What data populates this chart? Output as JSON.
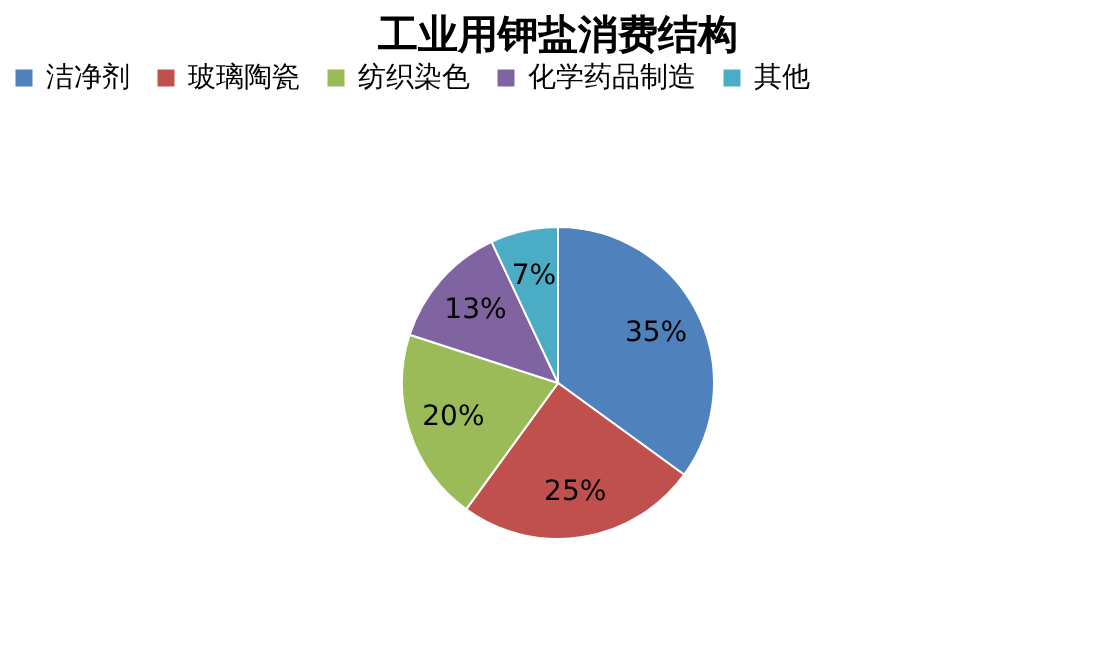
{
  "chart_data": {
    "type": "pie",
    "title": "工业用钾盐消费结构",
    "categories": [
      "洁净剂",
      "玻璃陶瓷",
      "纺织染色",
      "化学药品制造",
      "其他"
    ],
    "values": [
      35,
      25,
      20,
      13,
      7
    ],
    "value_labels": [
      "35%",
      "25%",
      "20%",
      "13%",
      "7%"
    ],
    "colors": [
      "#4f81bd",
      "#c0504d",
      "#9bbb59",
      "#8064a2",
      "#4bacc6"
    ],
    "legend": "top"
  }
}
